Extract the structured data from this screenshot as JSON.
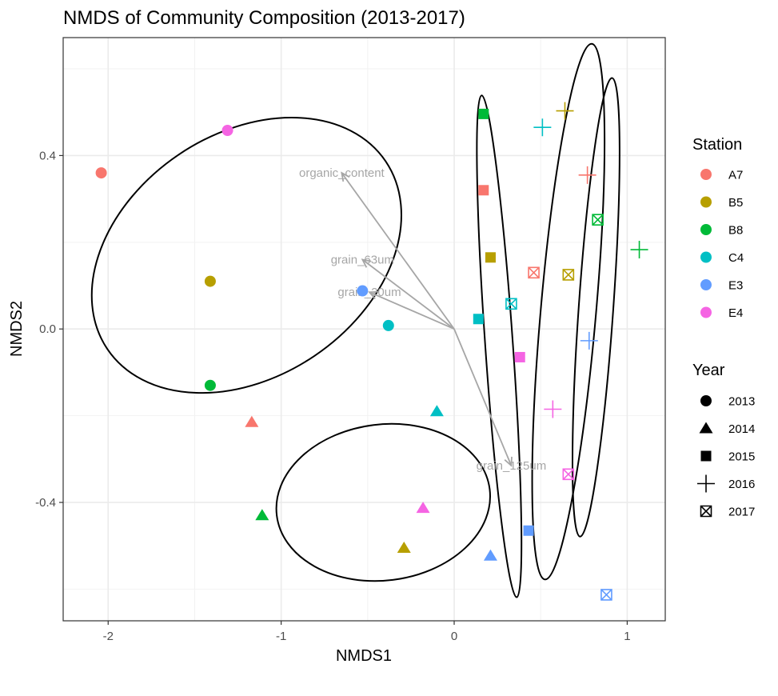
{
  "chart_data": {
    "type": "scatter",
    "title": "NMDS of Community Composition (2013-2017)",
    "xlabel": "NMDS1",
    "ylabel": "NMDS2",
    "xlim": [
      -2.26,
      1.22
    ],
    "ylim": [
      -0.673,
      0.672
    ],
    "x_ticks": [
      -2,
      -1,
      0,
      1
    ],
    "x_tick_labels": [
      "-2",
      "-1",
      "0",
      "1"
    ],
    "y_ticks": [
      0.4,
      0.0,
      -0.4
    ],
    "y_tick_labels": [
      "0.4",
      "0.0",
      "-0.4"
    ],
    "grid": true,
    "colors": {
      "A7": "#F8766D",
      "B5": "#B79F00",
      "B8": "#00BA38",
      "C4": "#00BFC4",
      "E3": "#619CFF",
      "E4": "#F564E3"
    },
    "legend_position": "right",
    "legend": {
      "station_title": "Station",
      "stations": [
        "A7",
        "B5",
        "B8",
        "C4",
        "E3",
        "E4"
      ],
      "year_title": "Year",
      "years": [
        "2013",
        "2014",
        "2015",
        "2016",
        "2017"
      ],
      "year_shapes": [
        "circle",
        "triangle",
        "square",
        "plus",
        "square-cross"
      ]
    },
    "points": [
      {
        "station": "A7",
        "year": "2013",
        "x": -2.04,
        "y": 0.36
      },
      {
        "station": "B5",
        "year": "2013",
        "x": -1.41,
        "y": 0.11
      },
      {
        "station": "B8",
        "year": "2013",
        "x": -1.41,
        "y": -0.13
      },
      {
        "station": "C4",
        "year": "2013",
        "x": -0.38,
        "y": 0.008
      },
      {
        "station": "E3",
        "year": "2013",
        "x": -0.53,
        "y": 0.088
      },
      {
        "station": "E4",
        "year": "2013",
        "x": -1.31,
        "y": 0.458
      },
      {
        "station": "A7",
        "year": "2014",
        "x": -1.17,
        "y": -0.215
      },
      {
        "station": "B5",
        "year": "2014",
        "x": -0.29,
        "y": -0.505
      },
      {
        "station": "B8",
        "year": "2014",
        "x": -1.11,
        "y": -0.43
      },
      {
        "station": "C4",
        "year": "2014",
        "x": -0.1,
        "y": -0.19
      },
      {
        "station": "E3",
        "year": "2014",
        "x": 0.21,
        "y": -0.523
      },
      {
        "station": "E4",
        "year": "2014",
        "x": -0.18,
        "y": -0.413
      },
      {
        "station": "A7",
        "year": "2015",
        "x": 0.17,
        "y": 0.32
      },
      {
        "station": "B5",
        "year": "2015",
        "x": 0.21,
        "y": 0.165
      },
      {
        "station": "B8",
        "year": "2015",
        "x": 0.17,
        "y": 0.496
      },
      {
        "station": "C4",
        "year": "2015",
        "x": 0.14,
        "y": 0.023
      },
      {
        "station": "E3",
        "year": "2015",
        "x": 0.43,
        "y": -0.465
      },
      {
        "station": "E4",
        "year": "2015",
        "x": 0.38,
        "y": -0.065
      },
      {
        "station": "A7",
        "year": "2016",
        "x": 0.77,
        "y": 0.355
      },
      {
        "station": "B5",
        "year": "2016",
        "x": 0.64,
        "y": 0.503
      },
      {
        "station": "B8",
        "year": "2016",
        "x": 1.07,
        "y": 0.183
      },
      {
        "station": "C4",
        "year": "2016",
        "x": 0.51,
        "y": 0.465
      },
      {
        "station": "E3",
        "year": "2016",
        "x": 0.78,
        "y": -0.027
      },
      {
        "station": "E4",
        "year": "2016",
        "x": 0.57,
        "y": -0.185
      },
      {
        "station": "A7",
        "year": "2017",
        "x": 0.46,
        "y": 0.13
      },
      {
        "station": "B5",
        "year": "2017",
        "x": 0.66,
        "y": 0.125
      },
      {
        "station": "B8",
        "year": "2017",
        "x": 0.83,
        "y": 0.252
      },
      {
        "station": "C4",
        "year": "2017",
        "x": 0.33,
        "y": 0.058
      },
      {
        "station": "E3",
        "year": "2017",
        "x": 0.88,
        "y": -0.613
      },
      {
        "station": "E4",
        "year": "2017",
        "x": 0.66,
        "y": -0.335
      }
    ],
    "vectors": [
      {
        "label": "organic_content",
        "x": -0.65,
        "y": 0.36
      },
      {
        "label": "grain_63um",
        "x": -0.53,
        "y": 0.16
      },
      {
        "label": "grain_20um",
        "x": -0.49,
        "y": 0.085
      },
      {
        "label": "grain_125um",
        "x": 0.33,
        "y": -0.315
      }
    ],
    "ellipses": [
      {
        "group": "2013",
        "cx": -1.2,
        "cy": 0.17,
        "rx": 0.97,
        "ry": 0.28,
        "angle": -34
      },
      {
        "group": "2014",
        "cx": -0.41,
        "cy": -0.4,
        "rx": 0.62,
        "ry": 0.18,
        "angle": -7
      },
      {
        "group": "2015",
        "cx": 0.26,
        "cy": -0.04,
        "rx": 0.08,
        "ry": 0.58,
        "angle": -4
      },
      {
        "group": "2016",
        "cx": 0.82,
        "cy": 0.05,
        "rx": 0.1,
        "ry": 0.53,
        "angle": 4
      },
      {
        "group": "2017",
        "cx": 0.66,
        "cy": 0.04,
        "rx": 0.16,
        "ry": 0.62,
        "angle": 5
      }
    ]
  }
}
